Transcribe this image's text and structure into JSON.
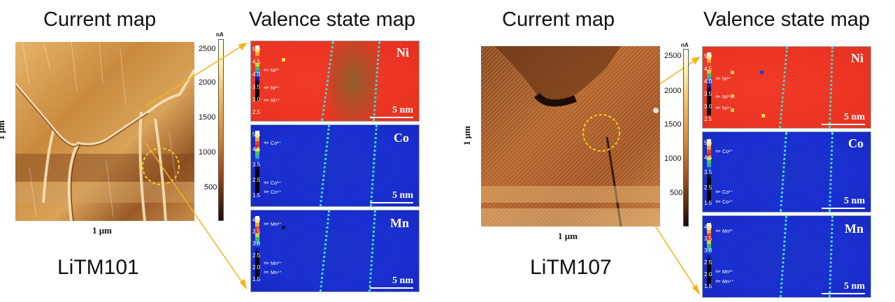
{
  "left": {
    "current_title": "Current map",
    "valence_title": "Valence state map",
    "sample": "LiTM101",
    "axis_x": "1 μm",
    "axis_y": "1 μm",
    "colorbar": {
      "unit": "nA",
      "ticks": [
        "2500",
        "2000",
        "1500",
        "1000",
        "500"
      ]
    },
    "panels": [
      {
        "element": "Ni",
        "scale": "5 nm",
        "ticks": [
          "5.0",
          "4.5",
          "4.0",
          "3.5",
          "3.0",
          "2.5"
        ],
        "states": [
          "Ni²⁺",
          "Ni³⁺",
          "Ni⁴⁺"
        ]
      },
      {
        "element": "Co",
        "scale": "5 nm",
        "ticks": [
          "5.5",
          "4.5",
          "3.5",
          "2.5",
          "1.5"
        ],
        "states": [
          "Co²⁺",
          "Co³⁺",
          "Co⁴⁺"
        ]
      },
      {
        "element": "Mn",
        "scale": "5 nm",
        "ticks": [
          "4.0",
          "3.5",
          "3.0",
          "2.5",
          "2.0",
          "1.5"
        ],
        "states": [
          "Mn²⁺",
          "Mn³⁺",
          "Mn⁴⁺"
        ]
      }
    ]
  },
  "right": {
    "current_title": "Current map",
    "valence_title": "Valence state map",
    "sample": "LiTM107",
    "axis_x": "1 μm",
    "axis_y": "1 μm",
    "colorbar": {
      "unit": "nA",
      "ticks": [
        "2500",
        "2000",
        "1500",
        "1000",
        "500"
      ]
    },
    "panels": [
      {
        "element": "Ni",
        "scale": "5 nm",
        "ticks": [
          "5.0",
          "4.5",
          "4.0",
          "3.5",
          "3.0",
          "2.5"
        ],
        "states": [
          "Ni²⁺",
          "Ni³⁺",
          "Ni⁴⁺"
        ]
      },
      {
        "element": "Co",
        "scale": "5 nm",
        "ticks": [
          "5.5",
          "4.5",
          "3.5",
          "2.5",
          "1.5"
        ],
        "states": [
          "Co²⁺",
          "Co³⁺",
          "Co⁴⁺"
        ]
      },
      {
        "element": "Mn",
        "scale": "5 nm",
        "ticks": [
          "4.0",
          "3.5",
          "3.0",
          "2.5",
          "2.0",
          "1.5"
        ],
        "states": [
          "Mn²⁺",
          "Mn³⁺",
          "Mn⁴⁺"
        ]
      }
    ]
  },
  "colors": {
    "callout": "#f2b41a",
    "boundary": "#3fd6c8",
    "ni_map": "#ee3524",
    "co_mn_map": "#1a2fd0"
  }
}
